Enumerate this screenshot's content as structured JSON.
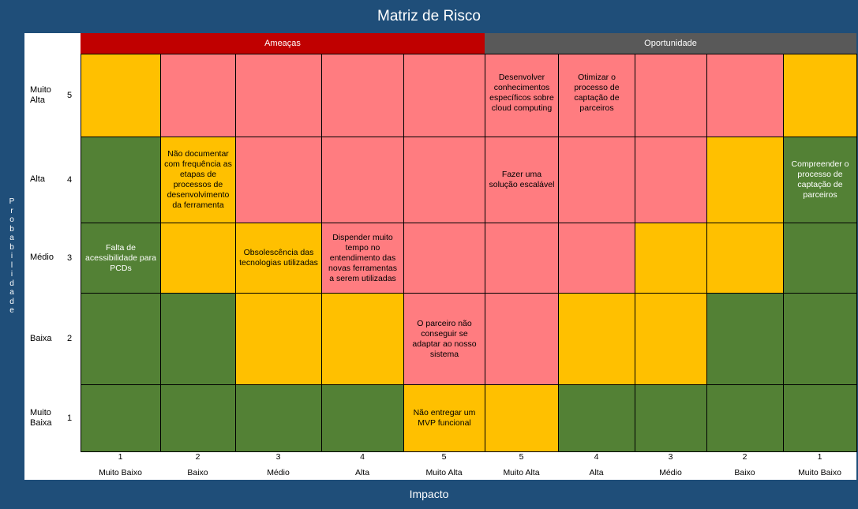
{
  "title": "Matriz de Risco",
  "y_axis_label": "Probabilidade",
  "x_axis_label": "Impacto",
  "headers": {
    "threats": "Ameaças",
    "opportunities": "Oportunidade"
  },
  "colors": {
    "red_header": "#c00000",
    "gray_header": "#595959",
    "green": "#538135",
    "pink": "#ff7c80",
    "yellow": "#ffc000"
  },
  "rows": [
    {
      "name": "Muito Alta",
      "num": "5"
    },
    {
      "name": "Alta",
      "num": "4"
    },
    {
      "name": "Médio",
      "num": "3"
    },
    {
      "name": "Baixa",
      "num": "2"
    },
    {
      "name": "Muito Baixa",
      "num": "1"
    }
  ],
  "columns": [
    {
      "num": "1",
      "name": "Muito Baixo"
    },
    {
      "num": "2",
      "name": "Baixo"
    },
    {
      "num": "3",
      "name": "Médio"
    },
    {
      "num": "4",
      "name": "Alta"
    },
    {
      "num": "5",
      "name": "Muito Alta"
    },
    {
      "num": "5",
      "name": "Muito Alta"
    },
    {
      "num": "4",
      "name": "Alta"
    },
    {
      "num": "3",
      "name": "Médio"
    },
    {
      "num": "2",
      "name": "Baixo"
    },
    {
      "num": "1",
      "name": "Muito Baixo"
    }
  ],
  "grid": [
    [
      "yellow",
      "pink",
      "pink",
      "pink",
      "pink",
      "pink",
      "pink",
      "pink",
      "pink",
      "yellow"
    ],
    [
      "green",
      "yellow",
      "pink",
      "pink",
      "pink",
      "pink",
      "pink",
      "pink",
      "yellow",
      "green"
    ],
    [
      "green",
      "yellow",
      "yellow",
      "pink",
      "pink",
      "pink",
      "pink",
      "yellow",
      "yellow",
      "green"
    ],
    [
      "green",
      "green",
      "yellow",
      "yellow",
      "pink",
      "pink",
      "yellow",
      "yellow",
      "green",
      "green"
    ],
    [
      "green",
      "green",
      "green",
      "green",
      "yellow",
      "yellow",
      "green",
      "green",
      "green",
      "green"
    ]
  ],
  "cell_texts": [
    [
      "",
      "",
      "",
      "",
      "",
      "Desenvolver conhecimentos específicos sobre cloud computing",
      "Otimizar o processo de captação de parceiros",
      "",
      "",
      ""
    ],
    [
      "",
      "Não documentar com frequência as etapas de processos de desenvolvimento da ferramenta",
      "",
      "",
      "",
      "Fazer uma solução escalável",
      "",
      "",
      "",
      "Compreender o processo de captação de parceiros"
    ],
    [
      "Falta de acessibilidade para PCDs",
      "",
      "Obsolescência das tecnologias utilizadas",
      "Dispender muito tempo no entendimento das novas ferramentas a serem utilizadas",
      "",
      "",
      "",
      "",
      "",
      ""
    ],
    [
      "",
      "",
      "",
      "",
      "O parceiro não conseguir se adaptar ao nosso sistema",
      "",
      "",
      "",
      "",
      ""
    ],
    [
      "",
      "",
      "",
      "",
      "Não entregar um MVP funcional",
      "",
      "",
      "",
      "",
      ""
    ]
  ]
}
